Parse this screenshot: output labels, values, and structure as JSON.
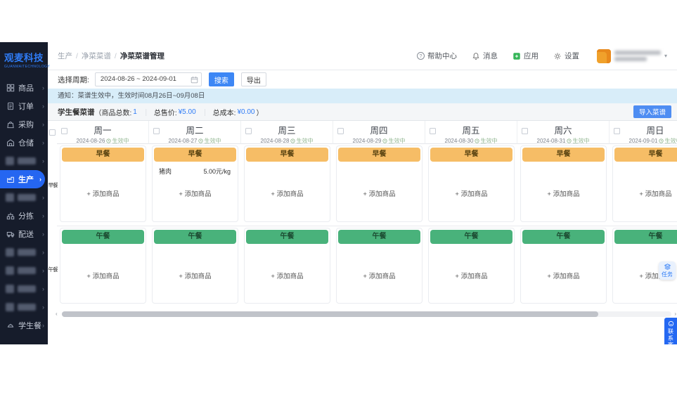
{
  "brand": {
    "logo": "观麦科技",
    "logo_sub": "GUANMAITECHNOLOGY"
  },
  "sidebar": {
    "items": [
      {
        "key": "goods",
        "label": "商品",
        "icon": "grid-icon"
      },
      {
        "key": "orders",
        "label": "订单",
        "icon": "order-icon"
      },
      {
        "key": "procurement",
        "label": "采购",
        "icon": "cart-icon"
      },
      {
        "key": "warehouse",
        "label": "仓储",
        "icon": "warehouse-icon"
      },
      {
        "key": "blurred-1",
        "label": "",
        "blurred": true
      },
      {
        "key": "production",
        "label": "生产",
        "icon": "factory-icon",
        "active": true
      },
      {
        "key": "blurred-2",
        "label": "",
        "blurred": true
      },
      {
        "key": "sorting",
        "label": "分拣",
        "icon": "sort-icon"
      },
      {
        "key": "delivery",
        "label": "配送",
        "icon": "truck-icon"
      },
      {
        "key": "blurred-3",
        "label": "",
        "blurred": true
      },
      {
        "key": "blurred-4",
        "label": "",
        "blurred": true
      },
      {
        "key": "blurred-5",
        "label": "",
        "blurred": true
      },
      {
        "key": "blurred-6",
        "label": "",
        "blurred": true
      },
      {
        "key": "student-meal",
        "label": "学生餐",
        "icon": "meal-icon"
      }
    ]
  },
  "header": {
    "breadcrumb": [
      "生产",
      "净菜菜谱",
      "净菜菜谱管理"
    ],
    "actions": [
      {
        "icon": "help-icon",
        "label": "帮助中心"
      },
      {
        "icon": "bell-icon",
        "label": "消息"
      },
      {
        "icon": "apps-icon",
        "label": "应用"
      },
      {
        "icon": "gear-icon",
        "label": "设置"
      }
    ]
  },
  "filter": {
    "period_label": "选择周期:",
    "date_range": "2024-08-26 ~ 2024-09-01",
    "search_label": "搜索",
    "export_label": "导出"
  },
  "notice": {
    "text": "通知：菜谱生效中，生效时间08月26日~09月08日"
  },
  "menu_bar": {
    "title": "学生餐菜谱",
    "paren_open": "（",
    "items_count_label": "商品总数:",
    "items_count": "1",
    "price_label": "总售价:",
    "price": "¥5.00",
    "cost_label": "总成本:",
    "cost": "¥0.00",
    "paren_close": "）",
    "separator": "｜",
    "import_label": "导入菜谱"
  },
  "week": {
    "days": [
      {
        "name": "周一",
        "date": "2024-08-26",
        "status": "生效中"
      },
      {
        "name": "周二",
        "date": "2024-08-27",
        "status": "生效中"
      },
      {
        "name": "周三",
        "date": "2024-08-28",
        "status": "生效中"
      },
      {
        "name": "周四",
        "date": "2024-08-29",
        "status": "生效中"
      },
      {
        "name": "周五",
        "date": "2024-08-30",
        "status": "生效中"
      },
      {
        "name": "周六",
        "date": "2024-08-31",
        "status": "生效中"
      },
      {
        "name": "周日",
        "date": "2024-09-01",
        "status": "生效中"
      }
    ]
  },
  "meals": {
    "breakfast_label": "早餐",
    "lunch_label": "午餐",
    "add_label": "+ 添加商品",
    "items": [
      {
        "day_index": 1,
        "meal": "breakfast",
        "name": "猪肉",
        "price": "5.00元/kg"
      }
    ]
  },
  "floaters": {
    "task_label": "任务",
    "service_label": "联系客服"
  },
  "colors": {
    "accent_blue": "#2f7cf6",
    "sidebar_bg": "#161c2b",
    "active_item_bg": "#2566f1",
    "breakfast_header": "#f6bd66",
    "lunch_header": "#49b27b",
    "notice_bg": "#d8edf9",
    "status_green": "#94b894"
  }
}
